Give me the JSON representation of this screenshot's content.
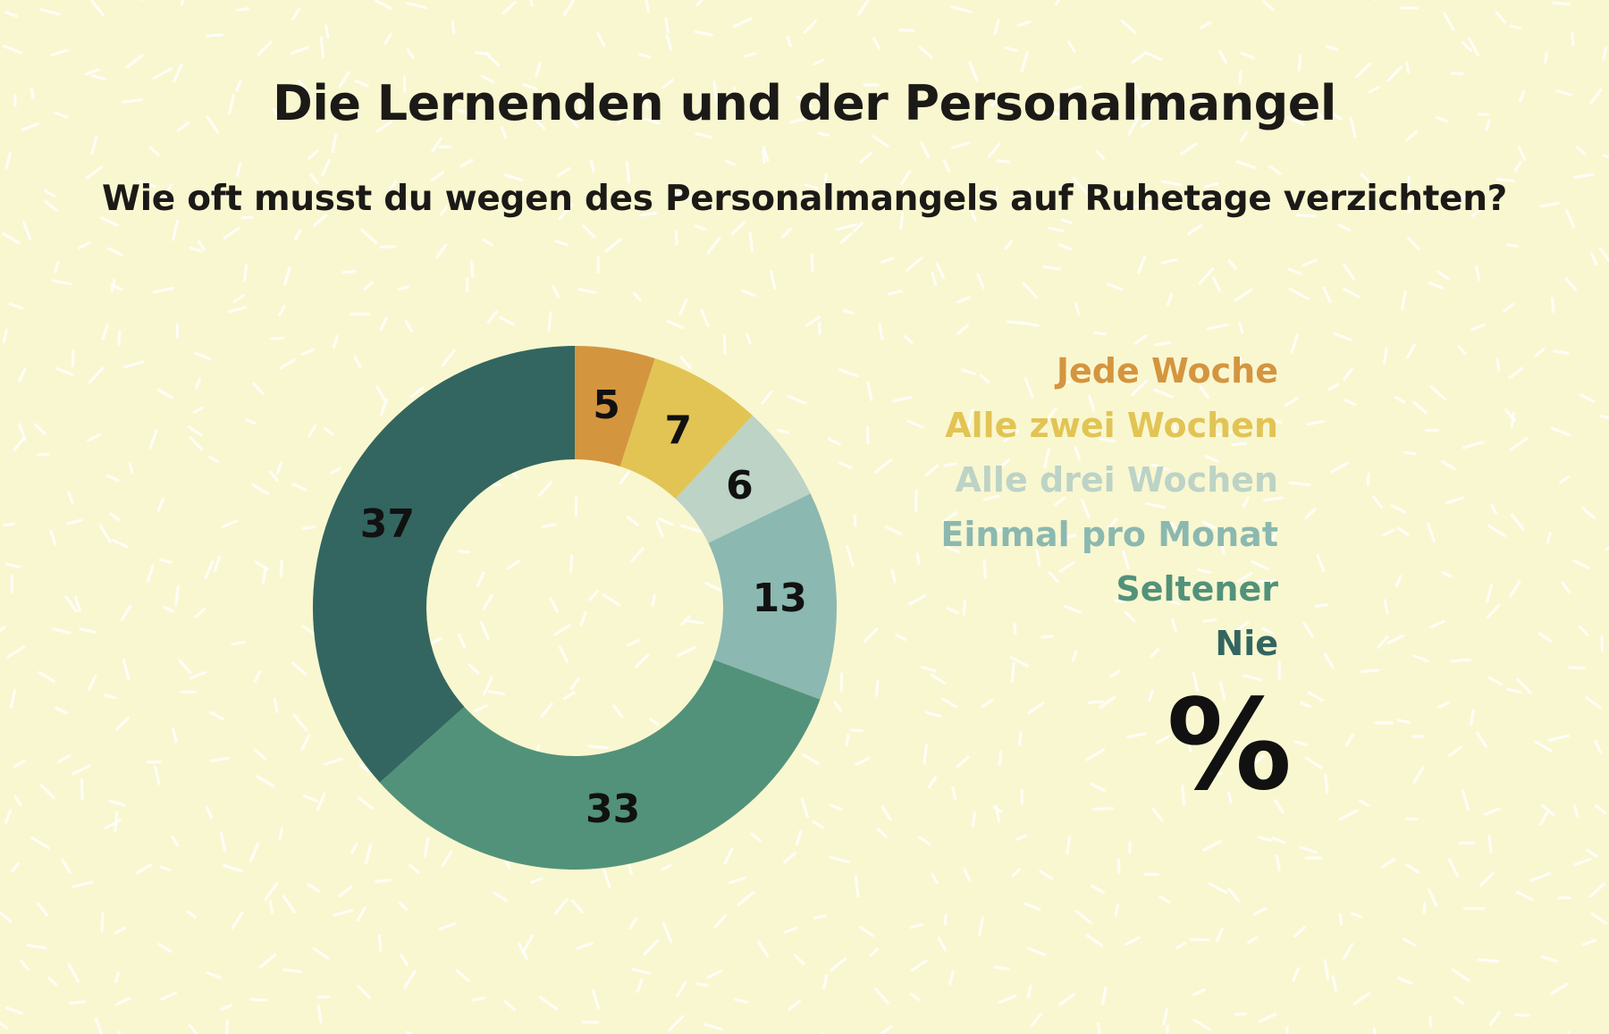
{
  "title": "Die Lernenden und der Personalmangel",
  "subtitle": "Wie oft musst du wegen des Personalmangels auf Ruhetage verzichten?",
  "unit": "%",
  "chart_data": {
    "type": "pie",
    "donut": true,
    "title": "Die Lernenden und der Personalmangel",
    "subtitle": "Wie oft musst du wegen des Personalmangels auf Ruhetage verzichten?",
    "unit": "%",
    "legend_position": "right",
    "categories": [
      "Jede Woche",
      "Alle zwei Wochen",
      "Alle drei Wochen",
      "Einmal pro Monat",
      "Seltener",
      "Nie"
    ],
    "values": [
      5,
      7,
      6,
      13,
      33,
      37
    ],
    "colors": [
      "#d4953f",
      "#e2c455",
      "#bcd3c6",
      "#8bb8b0",
      "#52927a",
      "#336660"
    ]
  },
  "colors": {
    "background": "#f9f7d0",
    "pattern": "#ffffff",
    "text": "#1c1a17"
  }
}
